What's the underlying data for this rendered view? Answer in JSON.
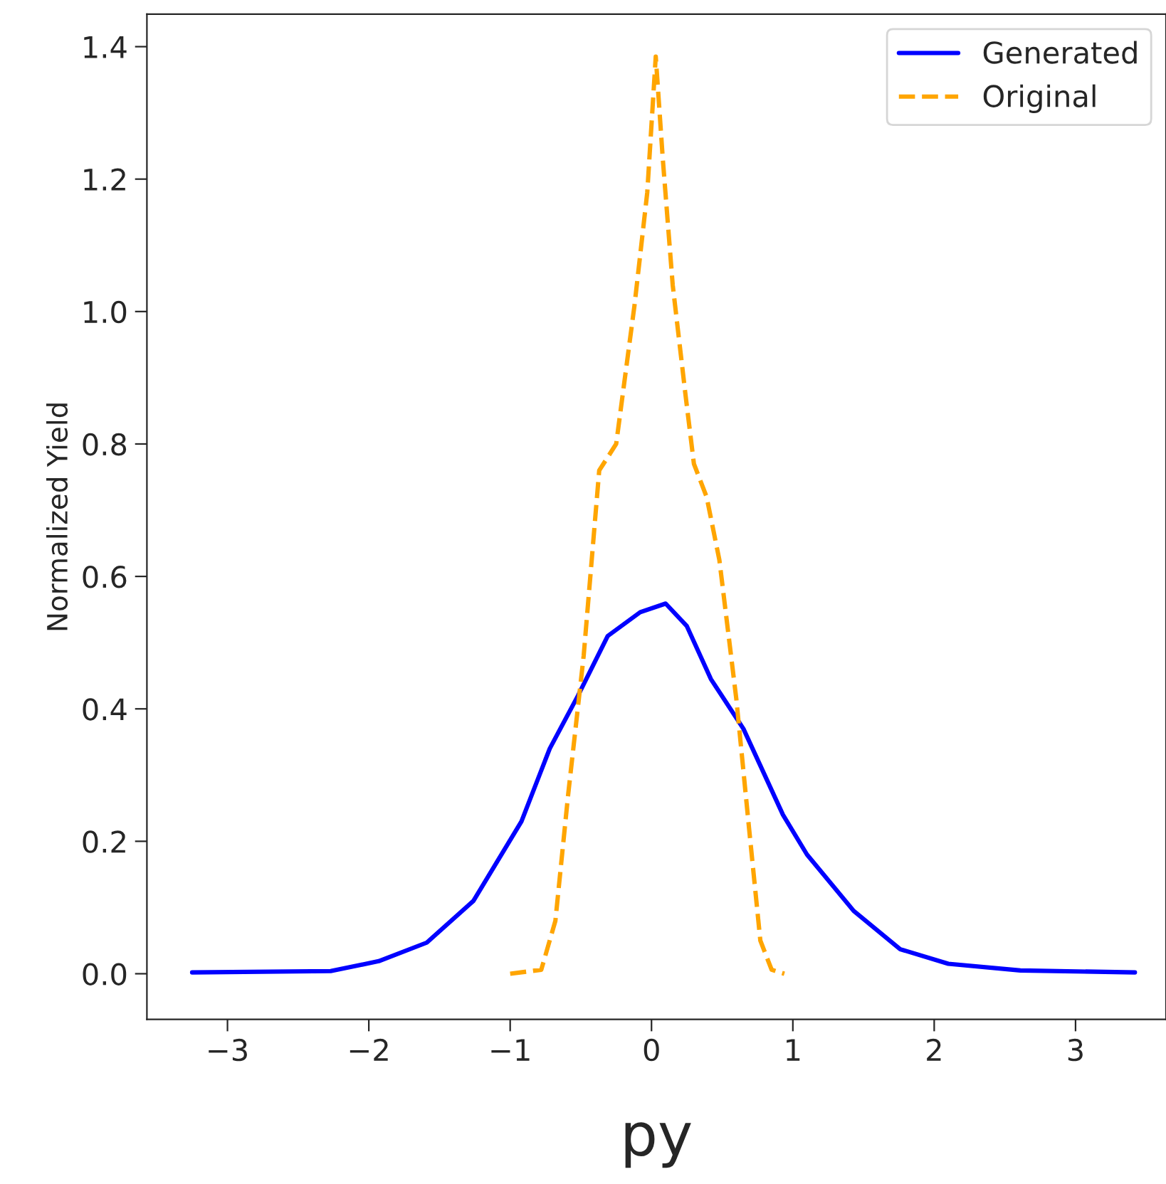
{
  "chart_data": {
    "type": "line",
    "xlabel": "py",
    "ylabel": "Normalized Yield",
    "xlim": [
      -3.57,
      3.64
    ],
    "ylim": [
      -0.069,
      1.449
    ],
    "xticks": [
      {
        "value": -3,
        "label": "−3"
      },
      {
        "value": -2,
        "label": "−2"
      },
      {
        "value": -1,
        "label": "−1"
      },
      0,
      1,
      2,
      3
    ],
    "yticks": [
      {
        "value": 0,
        "label": "0.0"
      },
      0.2,
      0.4,
      0.6,
      0.8,
      {
        "value": 1,
        "label": "1.0"
      },
      1.2,
      1.4
    ],
    "grid": false,
    "legend": "top right",
    "series": [
      {
        "name": "Generated",
        "color": "#0000ff",
        "line_style": "solid",
        "x": [
          -3.25,
          -2.27,
          -1.93,
          -1.59,
          -1.26,
          -0.92,
          -0.72,
          -0.52,
          -0.31,
          -0.08,
          0.1,
          0.25,
          0.42,
          0.65,
          0.93,
          1.1,
          1.43,
          1.76,
          2.1,
          2.61,
          3.42
        ],
        "values": [
          0.002,
          0.004,
          0.019,
          0.047,
          0.11,
          0.23,
          0.34,
          0.42,
          0.51,
          0.546,
          0.559,
          0.525,
          0.445,
          0.37,
          0.24,
          0.18,
          0.095,
          0.037,
          0.015,
          0.005,
          0.002
        ]
      },
      {
        "name": "Original",
        "color": "#ffa500",
        "line_style": "dashed",
        "x": [
          -1.0,
          -0.78,
          -0.68,
          -0.59,
          -0.48,
          -0.37,
          -0.25,
          -0.12,
          -0.03,
          0.03,
          0.08,
          0.15,
          0.24,
          0.3,
          0.39,
          0.48,
          0.6,
          0.69,
          0.77,
          0.85,
          0.94
        ],
        "values": [
          0,
          0.006,
          0.08,
          0.27,
          0.48,
          0.76,
          0.8,
          1.01,
          1.18,
          1.385,
          1.23,
          1.04,
          0.875,
          0.77,
          0.72,
          0.625,
          0.415,
          0.22,
          0.05,
          0.006,
          0
        ]
      }
    ]
  }
}
